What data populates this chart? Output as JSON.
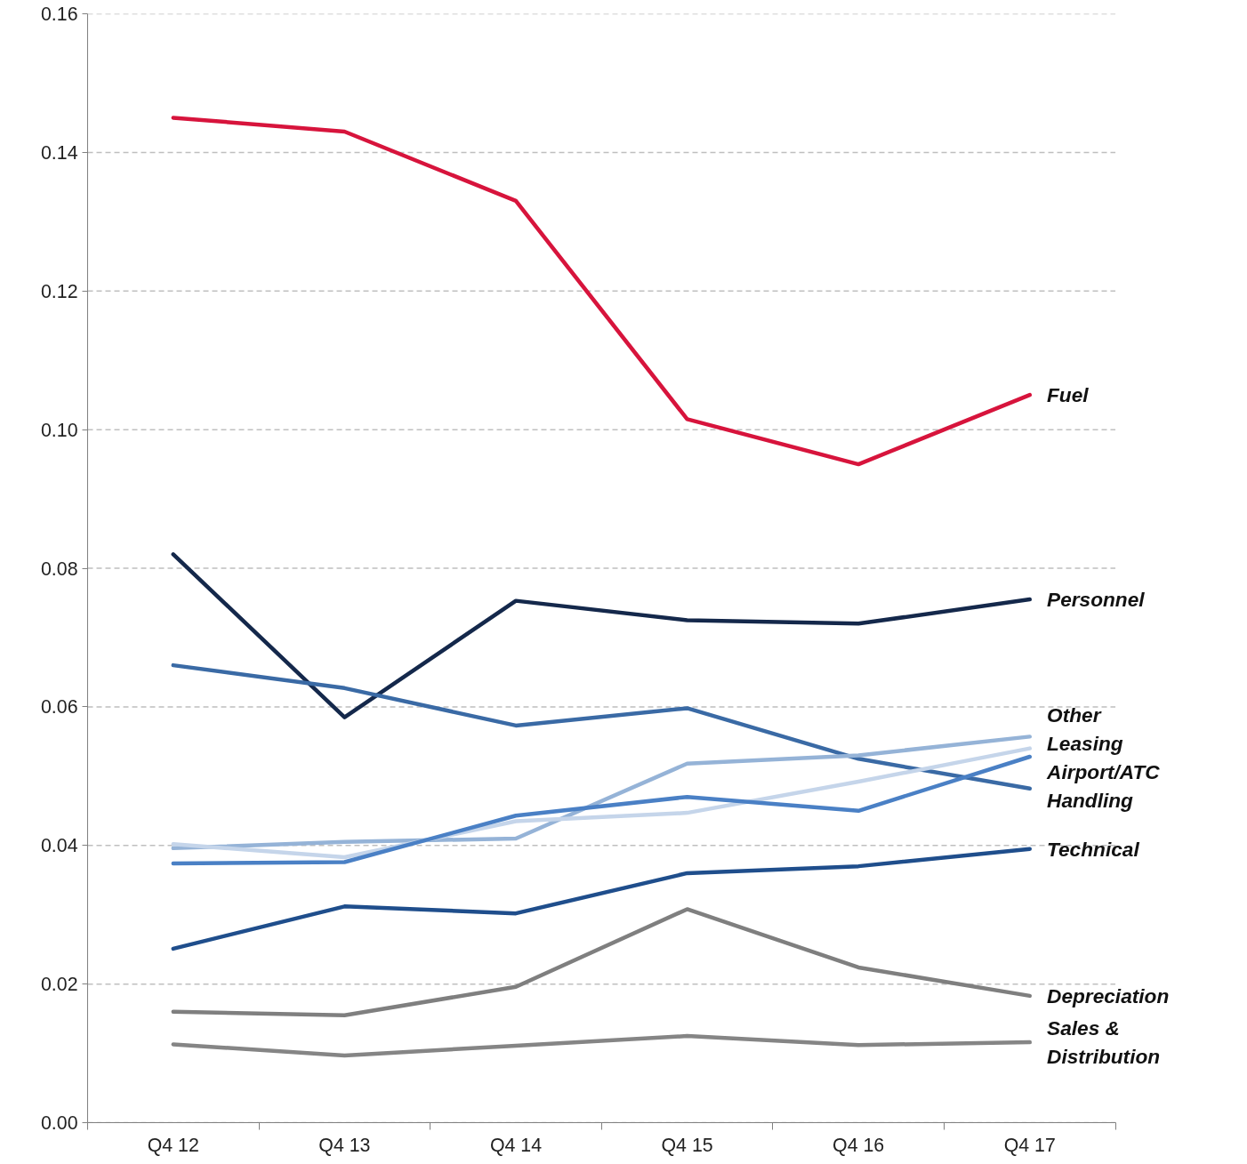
{
  "chart_data": {
    "type": "line",
    "categories": [
      "Q4 12",
      "Q4 13",
      "Q4 14",
      "Q4 15",
      "Q4 16",
      "Q4 17"
    ],
    "ylim": [
      0,
      0.16
    ],
    "yticks": [
      {
        "value": 0,
        "label": "0.00"
      },
      {
        "value": 0.02,
        "label": "0.02"
      },
      {
        "value": 0.04,
        "label": "0.04"
      },
      {
        "value": 0.06,
        "label": "0.06"
      },
      {
        "value": 0.08,
        "label": "0.08"
      },
      {
        "value": 0.1,
        "label": "0.10"
      },
      {
        "value": 0.12,
        "label": "0.12"
      },
      {
        "value": 0.14,
        "label": "0.14"
      },
      {
        "value": 0.16,
        "label": "0.16"
      }
    ],
    "grid": "y",
    "legend": false,
    "line_style": "solid",
    "series": [
      {
        "name": "Fuel",
        "color": "#d7143c",
        "values": [
          0.145,
          0.143,
          0.133,
          0.1015,
          0.095,
          0.105
        ]
      },
      {
        "name": "Personnel",
        "color": "#14284b",
        "values": [
          0.082,
          0.0585,
          0.0753,
          0.0725,
          0.072,
          0.0755
        ]
      },
      {
        "name": "Handling",
        "color": "#3a6aa5",
        "values": [
          0.066,
          0.0627,
          0.0573,
          0.0598,
          0.0525,
          0.0482
        ]
      },
      {
        "name": "Other",
        "color": "#95b3d7",
        "values": [
          0.0396,
          0.0405,
          0.041,
          0.0518,
          0.053,
          0.0557
        ]
      },
      {
        "name": "Leasing",
        "color": "#c5d5ea",
        "values": [
          0.0402,
          0.0383,
          0.0435,
          0.0447,
          0.0492,
          0.054
        ]
      },
      {
        "name": "Airport/ATC",
        "color": "#4a80c5",
        "values": [
          0.0374,
          0.0376,
          0.0443,
          0.047,
          0.045,
          0.0528
        ]
      },
      {
        "name": "Technical",
        "color": "#1f4e8c",
        "values": [
          0.0251,
          0.0312,
          0.0302,
          0.036,
          0.037,
          0.0395
        ]
      },
      {
        "name": "Depreciation",
        "color": "#7f7f7f",
        "values": [
          0.016,
          0.0155,
          0.0196,
          0.0308,
          0.0224,
          0.0183
        ]
      },
      {
        "name": "Sales & Distribution",
        "color": "#858585",
        "values": [
          0.0113,
          0.0097,
          0.0111,
          0.0125,
          0.0112,
          0.0116
        ]
      }
    ]
  }
}
